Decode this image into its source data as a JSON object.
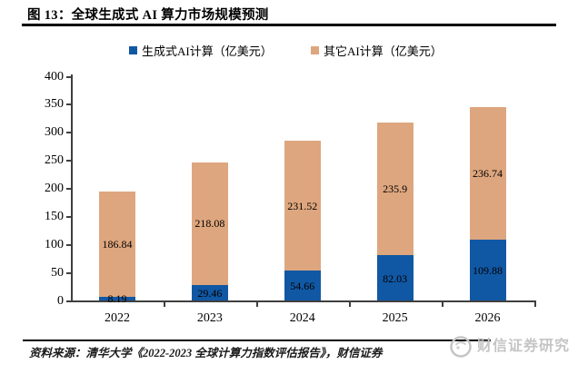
{
  "page": {
    "title": "图 13：全球生成式 AI 算力市场规模预测",
    "source_note": "资料来源：清华大学《2022-2023 全球计算力指数评估报告》，财信证券",
    "watermark_text": "财信证券研究"
  },
  "chart_data": {
    "type": "bar",
    "stacked": true,
    "title": "全球生成式AI算力市场规模预测",
    "categories": [
      "2022",
      "2023",
      "2024",
      "2025",
      "2026"
    ],
    "series": [
      {
        "name": "生成式AI计算（亿美元）",
        "color": "#1158A4",
        "values": [
          8.19,
          29.46,
          54.66,
          82.03,
          109.88
        ],
        "data_labels": [
          "8.19",
          "29.46",
          "54.66",
          "82.03",
          "109.88"
        ]
      },
      {
        "name": "其它AI计算（亿美元）",
        "color": "#DEA67E",
        "values": [
          186.84,
          218.08,
          231.52,
          235.9,
          236.74
        ],
        "data_labels": [
          "186.84",
          "218.08",
          "231.52",
          "235.9",
          "236.74"
        ]
      }
    ],
    "ylim": [
      0,
      400
    ],
    "yticks": [
      0,
      50,
      100,
      150,
      200,
      250,
      300,
      350,
      400
    ],
    "legend_position": "top",
    "grid": false,
    "axis_color": "#3F3F3F",
    "text_color": "#000000"
  }
}
